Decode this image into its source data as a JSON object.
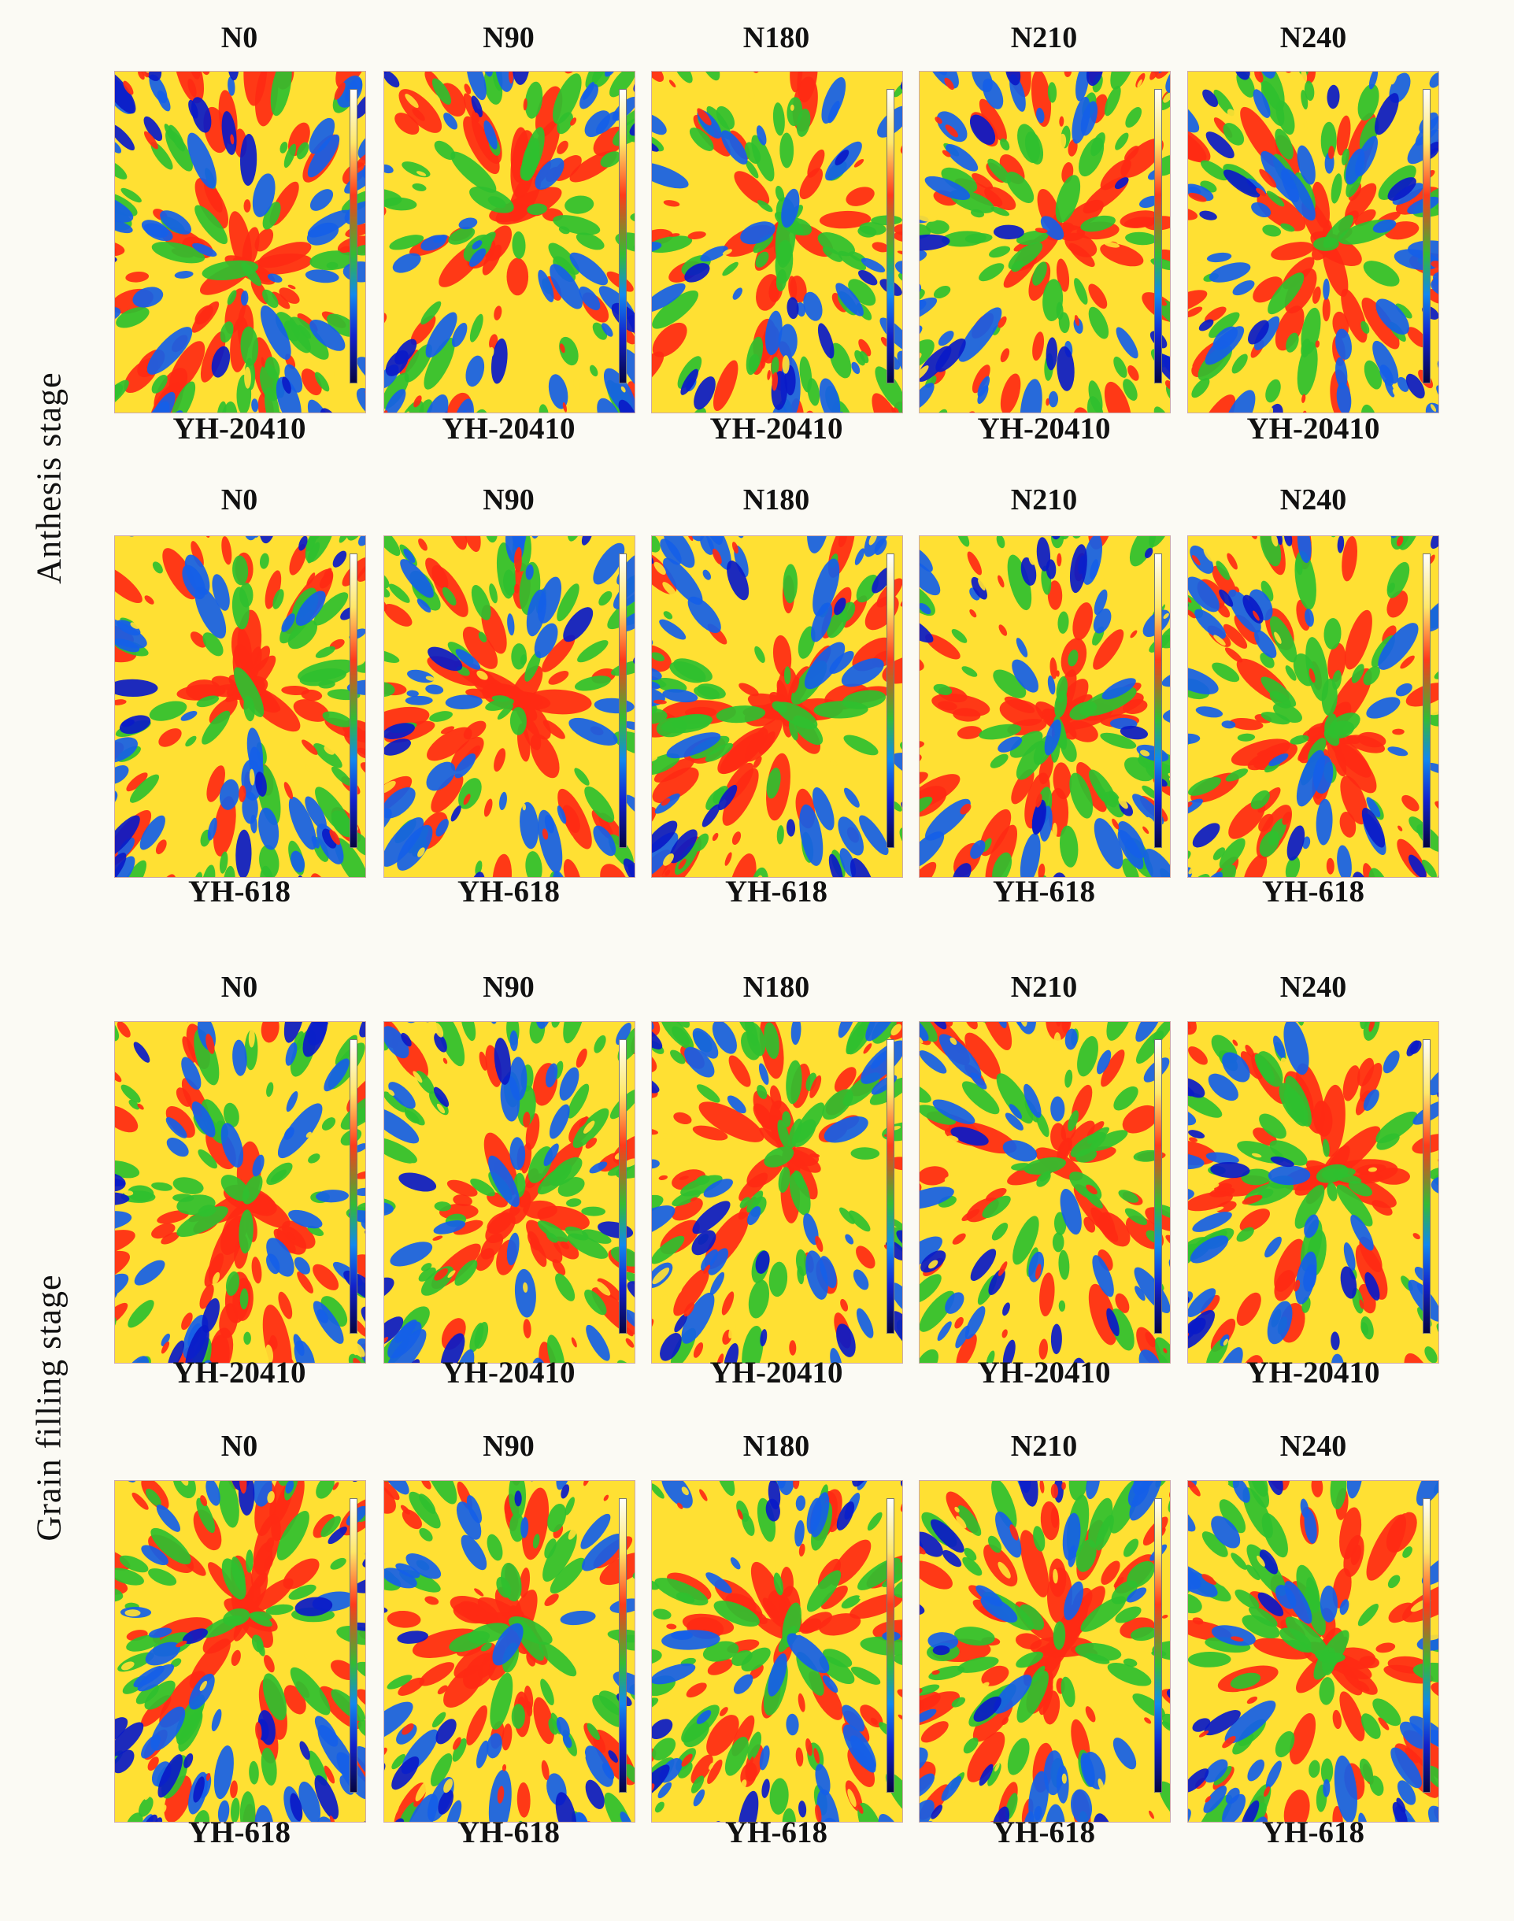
{
  "stages": [
    {
      "label": "Anthesis stage",
      "rows": [
        {
          "treatments": [
            "N0",
            "N90",
            "N180",
            "N210",
            "N240"
          ],
          "cultivar": "YH-20410",
          "images": [
            "thermal image",
            "thermal image",
            "thermal image",
            "thermal image",
            "thermal image"
          ]
        },
        {
          "treatments": [
            "N0",
            "N90",
            "N180",
            "N210",
            "N240"
          ],
          "cultivar": "YH-618",
          "images": [
            "thermal image",
            "thermal image",
            "thermal image",
            "thermal image",
            "thermal image"
          ]
        }
      ]
    },
    {
      "label": "Grain filling stage",
      "rows": [
        {
          "treatments": [
            "N0",
            "N90",
            "N180",
            "N210",
            "N240"
          ],
          "cultivar": "YH-20410",
          "images": [
            "thermal image",
            "thermal image",
            "thermal image",
            "thermal image",
            "thermal image"
          ]
        },
        {
          "treatments": [
            "N0",
            "N90",
            "N180",
            "N210",
            "N240"
          ],
          "cultivar": "YH-618",
          "images": [
            "thermal image",
            "thermal image",
            "thermal image",
            "thermal image",
            "thermal image"
          ]
        }
      ]
    }
  ],
  "palette": {
    "hot": "#ff2a14",
    "warm": "#ffe033",
    "mid": "#2fc02f",
    "cool": "#1560e8",
    "cold": "#0a1ac8",
    "page_bg": "#fbfaf4"
  }
}
